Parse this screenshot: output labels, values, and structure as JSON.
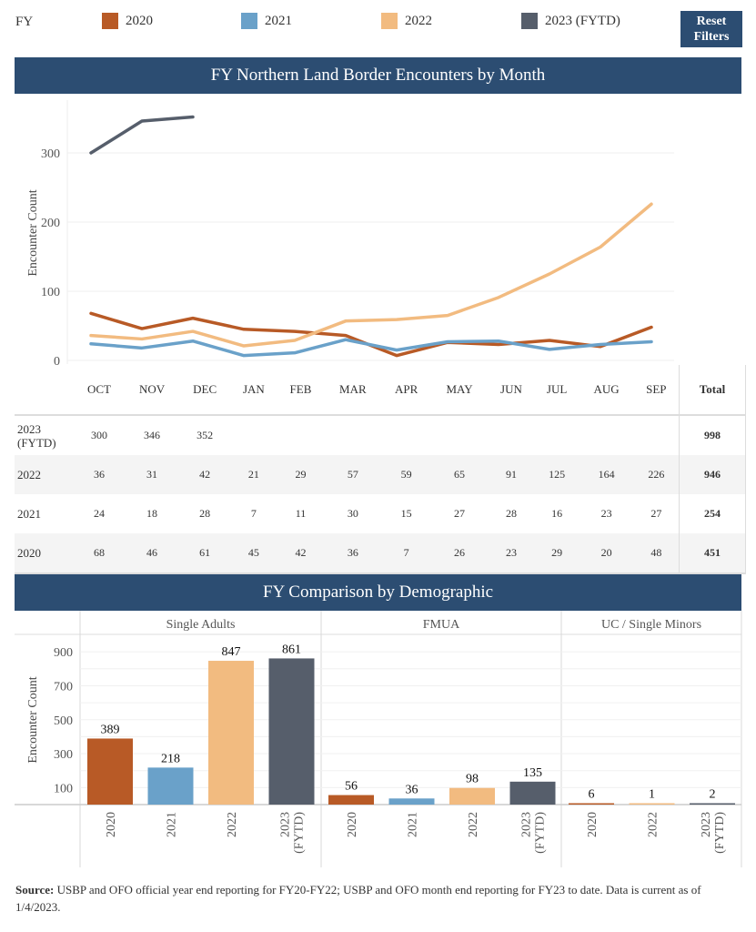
{
  "legend": {
    "label": "FY",
    "items": [
      {
        "label": "2020",
        "color": "#b85a26"
      },
      {
        "label": "2021",
        "color": "#6aa1c9"
      },
      {
        "label": "2022",
        "color": "#f2bb80"
      },
      {
        "label": "2023 (FYTD)",
        "color": "#565e6b"
      }
    ],
    "reset_line1": "Reset",
    "reset_line2": "Filters"
  },
  "section1": {
    "title": "FY Northern Land Border Encounters by Month"
  },
  "section2": {
    "title": "FY Comparison by Demographic"
  },
  "table": {
    "columns": [
      "OCT",
      "NOV",
      "DEC",
      "JAN",
      "FEB",
      "MAR",
      "APR",
      "MAY",
      "JUN",
      "JUL",
      "AUG",
      "SEP"
    ],
    "total_label": "Total",
    "rows": [
      {
        "label": "2023 (FYTD)",
        "values": [
          "300",
          "346",
          "352",
          "",
          "",
          "",
          "",
          "",
          "",
          "",
          "",
          ""
        ],
        "total": "998"
      },
      {
        "label": "2022",
        "values": [
          "36",
          "31",
          "42",
          "21",
          "29",
          "57",
          "59",
          "65",
          "91",
          "125",
          "164",
          "226"
        ],
        "total": "946"
      },
      {
        "label": "2021",
        "values": [
          "24",
          "18",
          "28",
          "7",
          "11",
          "30",
          "15",
          "27",
          "28",
          "16",
          "23",
          "27"
        ],
        "total": "254"
      },
      {
        "label": "2020",
        "values": [
          "68",
          "46",
          "61",
          "45",
          "42",
          "36",
          "7",
          "26",
          "23",
          "29",
          "20",
          "48"
        ],
        "total": "451"
      }
    ]
  },
  "source": {
    "label": "Source:",
    "text": " USBP and OFO official year end reporting for FY20-FY22; USBP and OFO month end reporting for FY23 to date. Data is current as of 1/4/2023."
  },
  "chart_data": [
    {
      "type": "line",
      "title": "FY Northern Land Border Encounters by Month",
      "xlabel": "",
      "ylabel": "Encounter Count",
      "categories": [
        "OCT",
        "NOV",
        "DEC",
        "JAN",
        "FEB",
        "MAR",
        "APR",
        "MAY",
        "JUN",
        "JUL",
        "AUG",
        "SEP"
      ],
      "yticks": [
        0,
        100,
        200,
        300
      ],
      "ylim": [
        0,
        370
      ],
      "grid": true,
      "series": [
        {
          "name": "2020",
          "color": "#b85a26",
          "values": [
            68,
            46,
            61,
            45,
            42,
            36,
            7,
            26,
            23,
            29,
            20,
            48
          ]
        },
        {
          "name": "2021",
          "color": "#6aa1c9",
          "values": [
            24,
            18,
            28,
            7,
            11,
            30,
            15,
            27,
            28,
            16,
            23,
            27
          ]
        },
        {
          "name": "2022",
          "color": "#f2bb80",
          "values": [
            36,
            31,
            42,
            21,
            29,
            57,
            59,
            65,
            91,
            125,
            164,
            226
          ]
        },
        {
          "name": "2023 (FYTD)",
          "color": "#565e6b",
          "values": [
            300,
            346,
            352
          ]
        }
      ]
    },
    {
      "type": "bar",
      "title": "FY Comparison by Demographic",
      "ylabel": "Encounter Count",
      "yticks": [
        100,
        300,
        500,
        700,
        900
      ],
      "ylim": [
        0,
        950
      ],
      "grid": true,
      "panels": [
        {
          "name": "Single Adults",
          "bars": [
            {
              "category": "2020",
              "value": 389,
              "color": "#b85a26"
            },
            {
              "category": "2021",
              "value": 218,
              "color": "#6aa1c9"
            },
            {
              "category": "2022",
              "value": 847,
              "color": "#f2bb80"
            },
            {
              "category": "2023 (FYTD)",
              "value": 861,
              "color": "#565e6b"
            }
          ]
        },
        {
          "name": "FMUA",
          "bars": [
            {
              "category": "2020",
              "value": 56,
              "color": "#b85a26"
            },
            {
              "category": "2021",
              "value": 36,
              "color": "#6aa1c9"
            },
            {
              "category": "2022",
              "value": 98,
              "color": "#f2bb80"
            },
            {
              "category": "2023 (FYTD)",
              "value": 135,
              "color": "#565e6b"
            }
          ]
        },
        {
          "name": "UC / Single Minors",
          "bars": [
            {
              "category": "2020",
              "value": 6,
              "color": "#b85a26"
            },
            {
              "category": "2022",
              "value": 1,
              "color": "#f2bb80"
            },
            {
              "category": "2023 (FYTD)",
              "value": 2,
              "color": "#565e6b"
            }
          ]
        }
      ]
    }
  ]
}
